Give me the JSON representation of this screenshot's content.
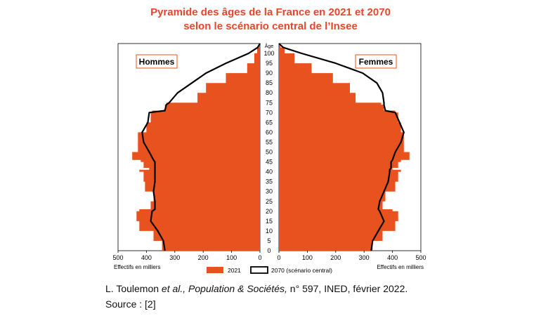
{
  "title_line1": "Pyramide des âges de la France en 2021 et 2070",
  "title_line2": "selon le scénario central de l’Insee",
  "caption": {
    "authors": "L. Toulemon ",
    "et_al": "et al., Population & Sociétés,",
    "rest": " n° 597, INED, février 2022.",
    "source": "Source : [2]"
  },
  "chart_data": {
    "type": "population-pyramid",
    "age_axis_label": "Âge",
    "age_ticks": [
      0,
      5,
      10,
      15,
      20,
      25,
      30,
      35,
      40,
      45,
      50,
      55,
      60,
      65,
      70,
      75,
      80,
      85,
      90,
      95,
      100
    ],
    "x_ticks": [
      500,
      400,
      300,
      200,
      100,
      0
    ],
    "x_label": "Effectifs en milliers",
    "xlim": [
      0,
      500
    ],
    "ylim": [
      0,
      105
    ],
    "left_label": "Hommes",
    "right_label": "Femmes",
    "legend": {
      "bars": "2021",
      "outline": "2070 (scénario central)"
    },
    "colors": {
      "bars": "#e8521f",
      "outline": "#000000",
      "title": "#e8452a"
    },
    "ages": [
      0,
      5,
      10,
      15,
      20,
      21,
      25,
      30,
      35,
      40,
      41,
      42,
      45,
      46,
      50,
      55,
      60,
      65,
      70,
      71,
      74,
      75,
      80,
      85,
      90,
      95,
      100,
      103,
      105
    ],
    "men_2021": [
      345,
      375,
      425,
      435,
      425,
      385,
      375,
      405,
      410,
      425,
      390,
      410,
      420,
      450,
      430,
      430,
      400,
      385,
      380,
      335,
      330,
      220,
      190,
      120,
      45,
      20,
      10,
      3,
      0
    ],
    "women_2021": [
      330,
      365,
      410,
      420,
      400,
      365,
      375,
      410,
      420,
      430,
      400,
      420,
      430,
      460,
      440,
      440,
      430,
      420,
      410,
      370,
      360,
      270,
      250,
      190,
      115,
      55,
      20,
      5,
      0
    ],
    "men_2070": [
      335,
      340,
      360,
      385,
      380,
      370,
      370,
      375,
      370,
      370,
      370,
      370,
      370,
      375,
      390,
      410,
      415,
      395,
      390,
      335,
      330,
      320,
      290,
      240,
      190,
      120,
      40,
      8,
      0
    ],
    "women_2070": [
      325,
      330,
      350,
      370,
      355,
      350,
      355,
      370,
      385,
      390,
      390,
      395,
      395,
      400,
      410,
      430,
      440,
      425,
      410,
      375,
      370,
      370,
      365,
      345,
      295,
      200,
      80,
      15,
      0
    ]
  }
}
